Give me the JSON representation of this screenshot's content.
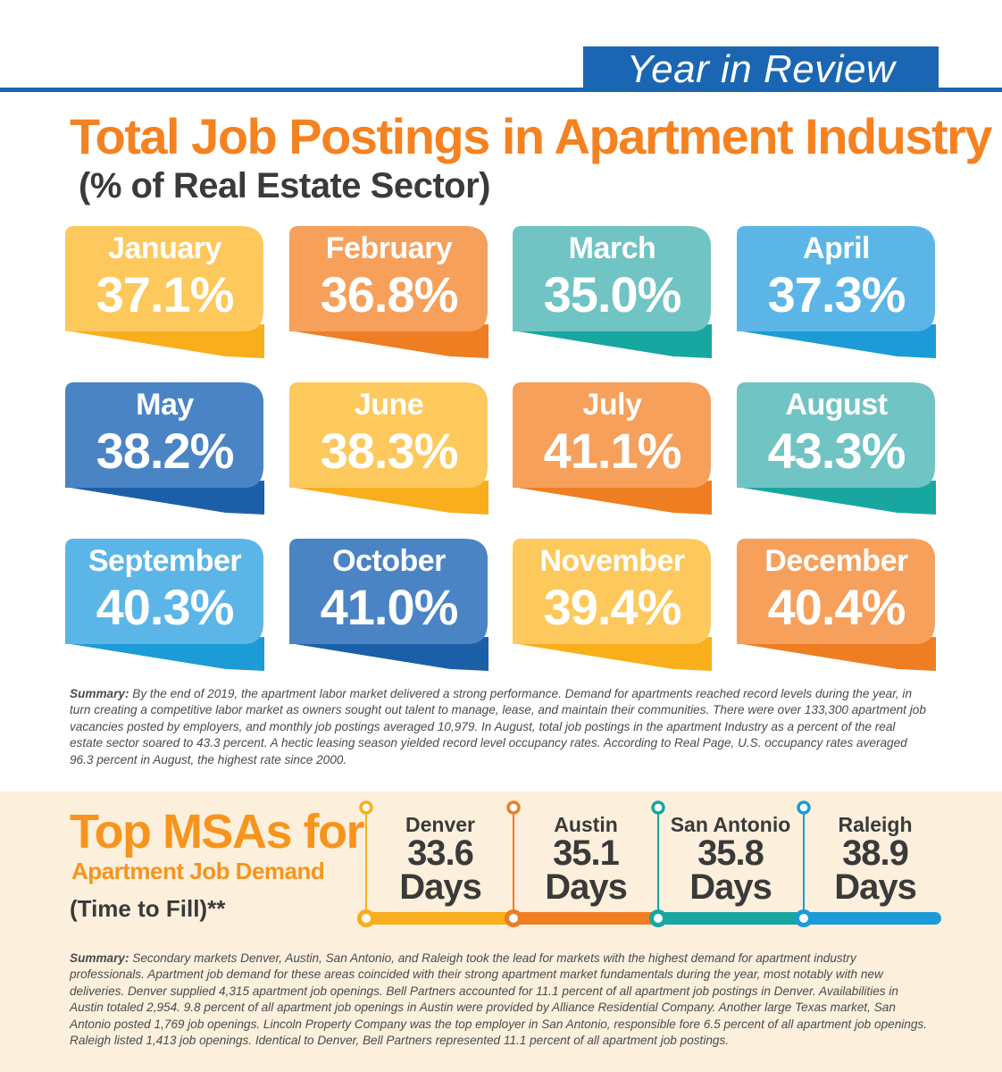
{
  "header": {
    "tab_label": "Year in Review"
  },
  "title": "Total Job Postings in Apartment Industry",
  "subtitle": "(% of Real Estate Sector)",
  "months": [
    {
      "name": "January",
      "value": "37.1%",
      "color": "#fdc95d",
      "dark": "#f9ae1c"
    },
    {
      "name": "February",
      "value": "36.8%",
      "color": "#f6a05c",
      "dark": "#ef7d22"
    },
    {
      "name": "March",
      "value": "35.0%",
      "color": "#70c4c3",
      "dark": "#18a6a0"
    },
    {
      "name": "April",
      "value": "37.3%",
      "color": "#5bb6e7",
      "dark": "#1c9bd6"
    },
    {
      "name": "May",
      "value": "38.2%",
      "color": "#4a84c4",
      "dark": "#1c5fa9"
    },
    {
      "name": "June",
      "value": "38.3%",
      "color": "#fdc95d",
      "dark": "#f9ae1c"
    },
    {
      "name": "July",
      "value": "41.1%",
      "color": "#f6a05c",
      "dark": "#ef7d22"
    },
    {
      "name": "August",
      "value": "43.3%",
      "color": "#70c4c3",
      "dark": "#18a6a0"
    },
    {
      "name": "September",
      "value": "40.3%",
      "color": "#5bb6e7",
      "dark": "#1c9bd6"
    },
    {
      "name": "October",
      "value": "41.0%",
      "color": "#4a84c4",
      "dark": "#1c5fa9"
    },
    {
      "name": "November",
      "value": "39.4%",
      "color": "#fdc95d",
      "dark": "#f9ae1c"
    },
    {
      "name": "December",
      "value": "40.4%",
      "color": "#f6a05c",
      "dark": "#ef7d22"
    }
  ],
  "summary1": {
    "lead": "Summary:",
    "text": " By the end of 2019, the apartment labor market delivered a strong performance. Demand for apartments reached record levels during the year, in turn creating a competitive labor market as owners sought out talent to manage, lease, and maintain their communities. There were over 133,300 apartment job vacancies posted by employers, and monthly job postings averaged 10,979. In August, total job postings in the apartment Industry as a percent of the real estate sector soared to 43.3 percent. A hectic leasing season yielded record level occupancy rates. According to Real Page, U.S. occupancy rates averaged 96.3 percent in August, the highest rate since 2000."
  },
  "msa": {
    "title": "Top MSAs for",
    "subtitle": "Apartment Job Demand",
    "note": "(Time to Fill)**",
    "cities": [
      {
        "name": "Denver",
        "days": "33.6",
        "unit": "Days",
        "color": "#f9ae1c"
      },
      {
        "name": "Austin",
        "days": "35.1",
        "unit": "Days",
        "color": "#ef7d22"
      },
      {
        "name": "San Antonio",
        "days": "35.8",
        "unit": "Days",
        "color": "#18a6a0"
      },
      {
        "name": "Raleigh",
        "days": "38.9",
        "unit": "Days",
        "color": "#1c9bd6"
      }
    ]
  },
  "summary2": {
    "lead": "Summary:",
    "text": " Secondary markets Denver, Austin, San Antonio, and Raleigh took the lead for markets with the highest demand for apartment industry professionals. Apartment job demand for these areas coincided with their strong apartment market fundamentals during the year, most notably with new deliveries. Denver supplied 4,315 apartment job openings. Bell Partners accounted for 11.1 percent of all apartment job postings in Denver. Availabilities in Austin totaled 2,954. 9.8 percent of all apartment job openings in Austin were provided by Alliance Residential Company. Another large Texas market, San Antonio posted 1,769 job openings. Lincoln Property Company was the top employer in San Antonio, responsible fore 6.5 percent of all apartment job openings. Raleigh listed 1,413 job openings. Identical to Denver, Bell Partners represented 11.1 percent of all apartment job postings."
  }
}
